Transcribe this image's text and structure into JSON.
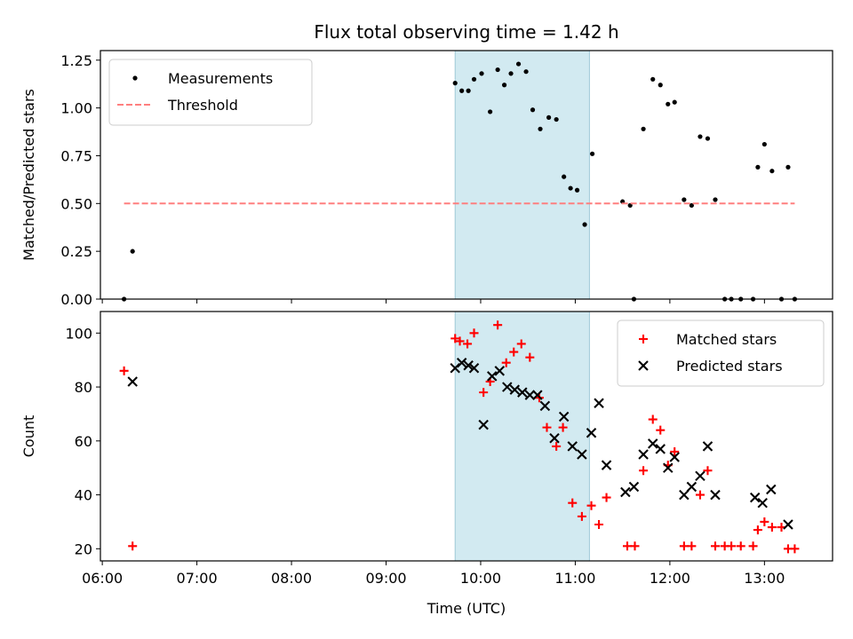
{
  "chart_data": [
    {
      "type": "scatter",
      "title": "Flux total observing time = 1.42 h",
      "ylabel": "Matched/Predicted stars",
      "xlabel": "",
      "x_unit": "hours (UTC)",
      "xlim": [
        5.98,
        13.72
      ],
      "ylim": [
        0,
        1.3
      ],
      "yticks": [
        0,
        0.25,
        0.5,
        0.75,
        1.0,
        1.25
      ],
      "ytick_labels": [
        "0.00",
        "0.25",
        "0.50",
        "0.75",
        "1.00",
        "1.25"
      ],
      "shaded_region": {
        "x": [
          9.73,
          11.15
        ],
        "color": "#add8e6"
      },
      "legend": {
        "position": "top-left",
        "entries": [
          "Measurements",
          "Threshold"
        ]
      },
      "series": [
        {
          "name": "Measurements",
          "color": "#000000",
          "marker": "dot",
          "points": [
            [
              6.23,
              0
            ],
            [
              6.32,
              0.25
            ],
            [
              9.73,
              1.13
            ],
            [
              9.8,
              1.09
            ],
            [
              9.87,
              1.09
            ],
            [
              9.93,
              1.15
            ],
            [
              10.01,
              1.18
            ],
            [
              10.1,
              0.98
            ],
            [
              10.18,
              1.2
            ],
            [
              10.25,
              1.12
            ],
            [
              10.32,
              1.18
            ],
            [
              10.4,
              1.23
            ],
            [
              10.48,
              1.19
            ],
            [
              10.55,
              0.99
            ],
            [
              10.63,
              0.89
            ],
            [
              10.72,
              0.95
            ],
            [
              10.8,
              0.94
            ],
            [
              10.88,
              0.64
            ],
            [
              10.95,
              0.58
            ],
            [
              11.02,
              0.57
            ],
            [
              11.1,
              0.39
            ],
            [
              11.18,
              0.76
            ],
            [
              11.5,
              0.51
            ],
            [
              11.58,
              0.49
            ],
            [
              11.62,
              0
            ],
            [
              11.72,
              0.89
            ],
            [
              11.82,
              1.15
            ],
            [
              11.9,
              1.12
            ],
            [
              11.98,
              1.02
            ],
            [
              12.05,
              1.03
            ],
            [
              12.15,
              0.52
            ],
            [
              12.23,
              0.49
            ],
            [
              12.32,
              0.85
            ],
            [
              12.4,
              0.84
            ],
            [
              12.48,
              0.52
            ],
            [
              12.58,
              0
            ],
            [
              12.65,
              0
            ],
            [
              12.75,
              0
            ],
            [
              12.88,
              0
            ],
            [
              12.93,
              0.69
            ],
            [
              13.0,
              0.81
            ],
            [
              13.08,
              0.67
            ],
            [
              13.18,
              0
            ],
            [
              13.25,
              0.69
            ],
            [
              13.32,
              0
            ]
          ]
        },
        {
          "name": "Threshold",
          "color": "#ff7f7f",
          "style": "dashed",
          "points": [
            [
              6.23,
              0.5
            ],
            [
              13.32,
              0.5
            ]
          ]
        }
      ]
    },
    {
      "type": "scatter",
      "title": "",
      "ylabel": "Count",
      "xlabel": "Time (UTC)",
      "x_unit": "hours (UTC)",
      "xlim": [
        5.98,
        13.72
      ],
      "ylim": [
        15.5,
        108
      ],
      "xticks": [
        6,
        7,
        8,
        9,
        10,
        11,
        12,
        13
      ],
      "xtick_labels": [
        "06:00",
        "07:00",
        "08:00",
        "09:00",
        "10:00",
        "11:00",
        "12:00",
        "13:00"
      ],
      "yticks": [
        20,
        40,
        60,
        80,
        100
      ],
      "ytick_labels": [
        "20",
        "40",
        "60",
        "80",
        "100"
      ],
      "shaded_region": {
        "x": [
          9.73,
          11.15
        ],
        "color": "#add8e6"
      },
      "legend": {
        "position": "top-right",
        "entries": [
          "Matched stars",
          "Predicted stars"
        ]
      },
      "series": [
        {
          "name": "Matched stars",
          "color": "#ff0000",
          "marker": "plus",
          "points": [
            [
              6.23,
              86
            ],
            [
              6.32,
              21
            ],
            [
              9.73,
              98
            ],
            [
              9.78,
              97
            ],
            [
              9.86,
              96
            ],
            [
              9.93,
              100
            ],
            [
              10.03,
              78
            ],
            [
              10.1,
              82
            ],
            [
              10.18,
              103
            ],
            [
              10.27,
              89
            ],
            [
              10.35,
              93
            ],
            [
              10.43,
              96
            ],
            [
              10.52,
              91
            ],
            [
              10.62,
              76
            ],
            [
              10.7,
              65
            ],
            [
              10.8,
              58
            ],
            [
              10.87,
              65
            ],
            [
              10.97,
              37
            ],
            [
              11.07,
              32
            ],
            [
              11.17,
              36
            ],
            [
              11.25,
              29
            ],
            [
              11.33,
              39
            ],
            [
              11.55,
              21
            ],
            [
              11.63,
              21
            ],
            [
              11.72,
              49
            ],
            [
              11.82,
              68
            ],
            [
              11.9,
              64
            ],
            [
              11.98,
              51
            ],
            [
              12.05,
              56
            ],
            [
              12.15,
              21
            ],
            [
              12.23,
              21
            ],
            [
              12.32,
              40
            ],
            [
              12.4,
              49
            ],
            [
              12.48,
              21
            ],
            [
              12.58,
              21
            ],
            [
              12.65,
              21
            ],
            [
              12.75,
              21
            ],
            [
              12.88,
              21
            ],
            [
              12.93,
              27
            ],
            [
              13.0,
              30
            ],
            [
              13.08,
              28
            ],
            [
              13.18,
              28
            ],
            [
              13.25,
              20
            ],
            [
              13.32,
              20
            ]
          ]
        },
        {
          "name": "Predicted stars",
          "color": "#000000",
          "marker": "x",
          "points": [
            [
              6.32,
              82
            ],
            [
              9.73,
              87
            ],
            [
              9.8,
              89
            ],
            [
              9.87,
              88
            ],
            [
              9.93,
              87
            ],
            [
              10.03,
              66
            ],
            [
              10.12,
              84
            ],
            [
              10.2,
              86
            ],
            [
              10.28,
              80
            ],
            [
              10.36,
              79
            ],
            [
              10.44,
              78
            ],
            [
              10.52,
              77
            ],
            [
              10.6,
              77
            ],
            [
              10.68,
              73
            ],
            [
              10.78,
              61
            ],
            [
              10.88,
              69
            ],
            [
              10.97,
              58
            ],
            [
              11.07,
              55
            ],
            [
              11.17,
              63
            ],
            [
              11.25,
              74
            ],
            [
              11.33,
              51
            ],
            [
              11.53,
              41
            ],
            [
              11.62,
              43
            ],
            [
              11.72,
              55
            ],
            [
              11.82,
              59
            ],
            [
              11.9,
              57
            ],
            [
              11.98,
              50
            ],
            [
              12.05,
              54
            ],
            [
              12.15,
              40
            ],
            [
              12.23,
              43
            ],
            [
              12.32,
              47
            ],
            [
              12.4,
              58
            ],
            [
              12.48,
              40
            ],
            [
              12.9,
              39
            ],
            [
              12.98,
              37
            ],
            [
              13.07,
              42
            ],
            [
              13.25,
              29
            ]
          ]
        }
      ]
    }
  ]
}
